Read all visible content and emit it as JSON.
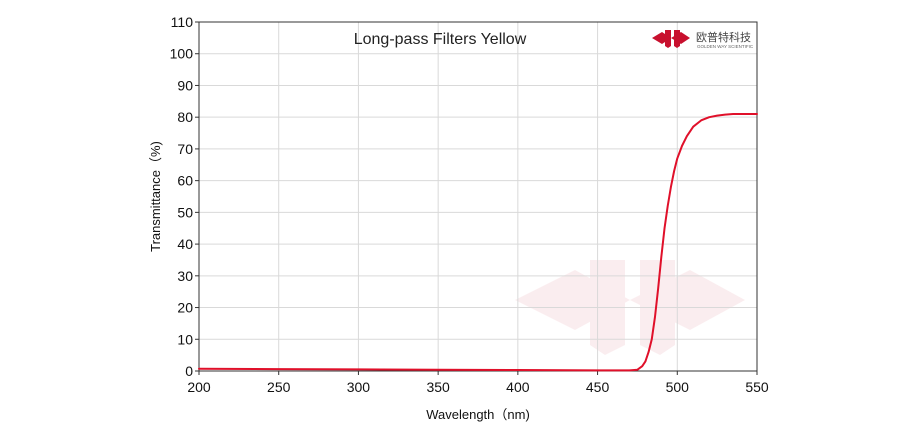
{
  "chart_data": {
    "type": "line",
    "title": "Long-pass Filters Yellow",
    "xlabel": "Wavelength（nm)",
    "ylabel": "Transmittance（%)",
    "xlim": [
      200,
      550
    ],
    "ylim": [
      0,
      110
    ],
    "xticks": [
      200,
      250,
      300,
      350,
      400,
      450,
      500,
      550
    ],
    "yticks": [
      0,
      10,
      20,
      30,
      40,
      50,
      60,
      70,
      80,
      90,
      100,
      110
    ],
    "grid": true,
    "legend": "none",
    "series": [
      {
        "color": "#e0102a",
        "x": [
          200,
          250,
          300,
          350,
          400,
          450,
          470,
          475,
          478,
          480,
          482,
          484,
          486,
          488,
          490,
          492,
          494,
          496,
          498,
          500,
          503,
          506,
          510,
          515,
          520,
          525,
          530,
          535,
          540,
          545,
          550
        ],
        "y": [
          0.7,
          0.6,
          0.5,
          0.4,
          0.3,
          0.2,
          0.2,
          0.4,
          1.5,
          3,
          6,
          10,
          17,
          26,
          36,
          45,
          52,
          58,
          63,
          67,
          71,
          74,
          77,
          79,
          80,
          80.5,
          80.8,
          81,
          81,
          81,
          81
        ]
      }
    ]
  },
  "brand": {
    "name_cn": "欧普特科技",
    "name_en": "GOLDEN WAY SCIENTIFIC",
    "color": "#c8102e"
  }
}
